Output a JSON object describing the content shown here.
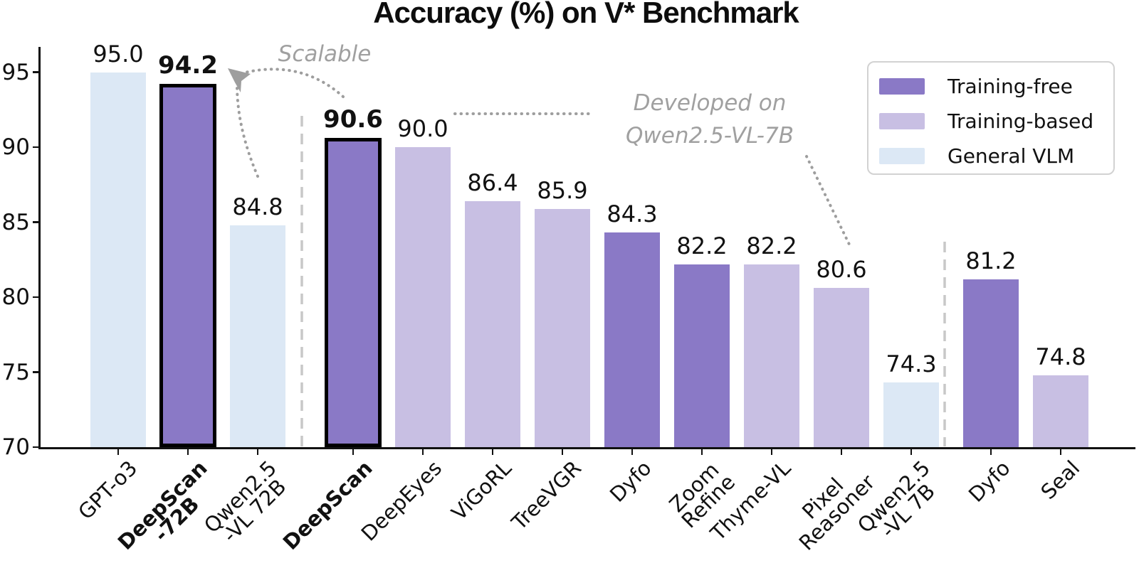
{
  "title": "Accuracy (%) on V* Benchmark",
  "y_axis": {
    "ticks": [
      70,
      75,
      80,
      85,
      90,
      95
    ],
    "min": 70,
    "max": 96.7
  },
  "legend": {
    "items": [
      {
        "label": "Training-free",
        "color": "#8a79c6"
      },
      {
        "label": "Training-based",
        "color": "#c8bfe3"
      },
      {
        "label": "General VLM",
        "color": "#dce8f5"
      }
    ]
  },
  "annotations": {
    "scalable_label": "Scalable",
    "developed_label": "Developed on\nQwen2.5-VL-7B"
  },
  "colors": {
    "highlight_border": "#000000",
    "separator": "#c8c8c8",
    "annotation_gray": "#9e9e9e",
    "axis": "#111111"
  },
  "chart_data": {
    "type": "bar",
    "title": "Accuracy (%) on V* Benchmark",
    "xlabel": "",
    "ylabel": "",
    "ylim": [
      70,
      96.7
    ],
    "yticks": [
      70,
      75,
      80,
      85,
      90,
      95
    ],
    "grid": false,
    "legend_position": "upper right",
    "categories": [
      "GPT-o3",
      "DeepScan\n-72B",
      "Qwen2.5\n-VL 72B",
      "DeepScan",
      "DeepEyes",
      "ViGoRL",
      "TreeVGR",
      "Dyfo",
      "Zoom\nRefine",
      "Thyme-VL",
      "Pixel\nReasoner",
      "Qwen2.5\n-VL 7B",
      "Dyfo",
      "Seal"
    ],
    "bars": [
      {
        "label": "GPT-o3",
        "value": 95.0,
        "category": "General VLM",
        "highlight": false,
        "group": 1
      },
      {
        "label": "DeepScan\n-72B",
        "value": 94.2,
        "category": "Training-free",
        "highlight": true,
        "group": 1
      },
      {
        "label": "Qwen2.5\n-VL 72B",
        "value": 84.8,
        "category": "General VLM",
        "highlight": false,
        "group": 1
      },
      {
        "label": "DeepScan",
        "value": 90.6,
        "category": "Training-free",
        "highlight": true,
        "group": 2
      },
      {
        "label": "DeepEyes",
        "value": 90.0,
        "category": "Training-based",
        "highlight": false,
        "group": 2
      },
      {
        "label": "ViGoRL",
        "value": 86.4,
        "category": "Training-based",
        "highlight": false,
        "group": 2
      },
      {
        "label": "TreeVGR",
        "value": 85.9,
        "category": "Training-based",
        "highlight": false,
        "group": 2
      },
      {
        "label": "Dyfo",
        "value": 84.3,
        "category": "Training-free",
        "highlight": false,
        "group": 2
      },
      {
        "label": "Zoom\nRefine",
        "value": 82.2,
        "category": "Training-free",
        "highlight": false,
        "group": 2
      },
      {
        "label": "Thyme-VL",
        "value": 82.2,
        "category": "Training-based",
        "highlight": false,
        "group": 2
      },
      {
        "label": "Pixel\nReasoner",
        "value": 80.6,
        "category": "Training-based",
        "highlight": false,
        "group": 2
      },
      {
        "label": "Qwen2.5\n-VL 7B",
        "value": 74.3,
        "category": "General VLM",
        "highlight": false,
        "group": 2
      },
      {
        "label": "Dyfo",
        "value": 81.2,
        "category": "Training-free",
        "highlight": false,
        "group": 3
      },
      {
        "label": "Seal",
        "value": 74.8,
        "category": "Training-based",
        "highlight": false,
        "group": 3
      }
    ]
  }
}
